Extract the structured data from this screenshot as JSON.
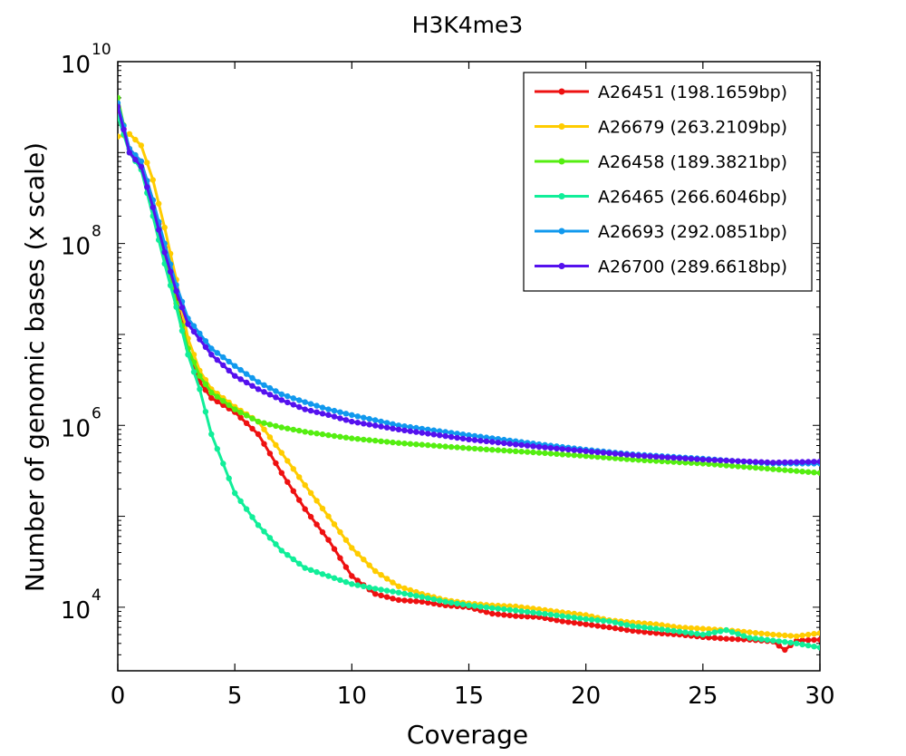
{
  "chart_data": {
    "type": "line",
    "title": "H3K4me3",
    "xlabel": "Coverage",
    "ylabel": "Number of genomic bases (x scale)",
    "xlim": [
      0,
      30
    ],
    "ylim": [
      2000,
      10000000000
    ],
    "yscale": "log",
    "grid": false,
    "legend_position": "top-right",
    "x_ticks": [
      {
        "value": 0,
        "label": "0"
      },
      {
        "value": 5,
        "label": "5"
      },
      {
        "value": 10,
        "label": "10"
      },
      {
        "value": 15,
        "label": "15"
      },
      {
        "value": 20,
        "label": "20"
      },
      {
        "value": 25,
        "label": "25"
      },
      {
        "value": 30,
        "label": "30"
      }
    ],
    "y_ticks": [
      {
        "value": 10000,
        "base": "10",
        "exp": "4"
      },
      {
        "value": 1000000,
        "base": "10",
        "exp": "6"
      },
      {
        "value": 100000000,
        "base": "10",
        "exp": "8"
      },
      {
        "value": 10000000000,
        "base": "10",
        "exp": "10"
      }
    ],
    "series": [
      {
        "name": "A26451 (198.1659bp)",
        "color": "#ee1111",
        "points": [
          [
            0,
            3000000000
          ],
          [
            0.5,
            1100000000
          ],
          [
            1,
            800000000
          ],
          [
            1.5,
            300000000
          ],
          [
            2,
            90000000
          ],
          [
            2.5,
            25000000
          ],
          [
            3,
            7000000
          ],
          [
            3.5,
            3000000
          ],
          [
            4,
            2000000
          ],
          [
            5,
            1400000
          ],
          [
            6,
            800000
          ],
          [
            7,
            300000
          ],
          [
            8,
            120000
          ],
          [
            9,
            55000
          ],
          [
            10,
            22000
          ],
          [
            11,
            14000
          ],
          [
            12,
            12000
          ],
          [
            13,
            11500
          ],
          [
            14,
            10500
          ],
          [
            15,
            10000
          ],
          [
            16,
            8500
          ],
          [
            17,
            8000
          ],
          [
            18,
            7800
          ],
          [
            19,
            7000
          ],
          [
            20,
            6500
          ],
          [
            21,
            6000
          ],
          [
            22,
            5500
          ],
          [
            23,
            5200
          ],
          [
            24,
            5000
          ],
          [
            25,
            4700
          ],
          [
            26,
            4500
          ],
          [
            27,
            4400
          ],
          [
            28,
            4200
          ],
          [
            28.5,
            3400
          ],
          [
            29,
            4300
          ],
          [
            30,
            4400
          ]
        ]
      },
      {
        "name": "A26679 (263.2109bp)",
        "color": "#ffcc00",
        "points": [
          [
            0,
            1500000000
          ],
          [
            0.5,
            1600000000
          ],
          [
            1,
            1200000000
          ],
          [
            1.5,
            500000000
          ],
          [
            2,
            150000000
          ],
          [
            2.5,
            40000000
          ],
          [
            3,
            9000000
          ],
          [
            3.5,
            4000000
          ],
          [
            4,
            2500000
          ],
          [
            5,
            1600000
          ],
          [
            6,
            1100000
          ],
          [
            7,
            500000
          ],
          [
            8,
            220000
          ],
          [
            9,
            100000
          ],
          [
            10,
            45000
          ],
          [
            11,
            25000
          ],
          [
            12,
            17000
          ],
          [
            13,
            14000
          ],
          [
            14,
            12000
          ],
          [
            15,
            11000
          ],
          [
            16,
            10500
          ],
          [
            17,
            10200
          ],
          [
            18,
            9500
          ],
          [
            19,
            8800
          ],
          [
            20,
            8200
          ],
          [
            21,
            7200
          ],
          [
            22,
            6800
          ],
          [
            23,
            6500
          ],
          [
            24,
            6000
          ],
          [
            25,
            5800
          ],
          [
            26,
            5600
          ],
          [
            27,
            5300
          ],
          [
            28,
            5000
          ],
          [
            29,
            4800
          ],
          [
            30,
            5200
          ]
        ]
      },
      {
        "name": "A26458 (189.3821bp)",
        "color": "#55ee11",
        "points": [
          [
            0,
            4000000000
          ],
          [
            0.5,
            1000000000
          ],
          [
            1,
            700000000
          ],
          [
            1.5,
            250000000
          ],
          [
            2,
            80000000
          ],
          [
            2.5,
            22000000
          ],
          [
            3,
            7000000
          ],
          [
            3.5,
            3500000
          ],
          [
            4,
            2300000
          ],
          [
            5,
            1500000
          ],
          [
            6,
            1100000
          ],
          [
            7,
            950000
          ],
          [
            8,
            850000
          ],
          [
            9,
            780000
          ],
          [
            10,
            720000
          ],
          [
            12,
            640000
          ],
          [
            15,
            560000
          ],
          [
            18,
            500000
          ],
          [
            20,
            460000
          ],
          [
            22,
            420000
          ],
          [
            25,
            380000
          ],
          [
            28,
            330000
          ],
          [
            30,
            300000
          ]
        ]
      },
      {
        "name": "A26465 (266.6046bp)",
        "color": "#11ee99",
        "points": [
          [
            0,
            2500000000
          ],
          [
            0.5,
            1000000000
          ],
          [
            1,
            650000000
          ],
          [
            1.5,
            200000000
          ],
          [
            2,
            60000000
          ],
          [
            2.5,
            20000000
          ],
          [
            3,
            6000000
          ],
          [
            3.5,
            2500000
          ],
          [
            4,
            800000
          ],
          [
            5,
            180000
          ],
          [
            6,
            80000
          ],
          [
            7,
            42000
          ],
          [
            8,
            27000
          ],
          [
            9,
            22000
          ],
          [
            10,
            18000
          ],
          [
            11,
            16000
          ],
          [
            12,
            14500
          ],
          [
            13,
            13000
          ],
          [
            14,
            11500
          ],
          [
            15,
            10500
          ],
          [
            16,
            9800
          ],
          [
            17,
            9200
          ],
          [
            18,
            8600
          ],
          [
            19,
            8000
          ],
          [
            20,
            7400
          ],
          [
            21,
            7000
          ],
          [
            22,
            6200
          ],
          [
            23,
            5800
          ],
          [
            24,
            5400
          ],
          [
            25,
            5000
          ],
          [
            26,
            5600
          ],
          [
            27,
            4600
          ],
          [
            28,
            4300
          ],
          [
            29,
            4000
          ],
          [
            30,
            3600
          ]
        ]
      },
      {
        "name": "A26693 (292.0851bp)",
        "color": "#1199ee",
        "points": [
          [
            0,
            3500000000
          ],
          [
            0.5,
            1100000000
          ],
          [
            1,
            800000000
          ],
          [
            1.5,
            300000000
          ],
          [
            2,
            100000000
          ],
          [
            2.5,
            35000000
          ],
          [
            3,
            15000000
          ],
          [
            4,
            7000000
          ],
          [
            5,
            4500000
          ],
          [
            6,
            3000000
          ],
          [
            7,
            2200000
          ],
          [
            8,
            1800000
          ],
          [
            9,
            1500000
          ],
          [
            10,
            1300000
          ],
          [
            12,
            1000000
          ],
          [
            15,
            780000
          ],
          [
            18,
            620000
          ],
          [
            20,
            540000
          ],
          [
            22,
            480000
          ],
          [
            25,
            430000
          ],
          [
            28,
            380000
          ],
          [
            30,
            380000
          ]
        ]
      },
      {
        "name": "A26700 (289.6618bp)",
        "color": "#5511ee",
        "points": [
          [
            0,
            3200000000
          ],
          [
            0.5,
            1000000000
          ],
          [
            1,
            700000000
          ],
          [
            1.5,
            250000000
          ],
          [
            2,
            80000000
          ],
          [
            2.5,
            30000000
          ],
          [
            3,
            13000000
          ],
          [
            4,
            6000000
          ],
          [
            5,
            3500000
          ],
          [
            6,
            2500000
          ],
          [
            7,
            1900000
          ],
          [
            8,
            1500000
          ],
          [
            9,
            1300000
          ],
          [
            10,
            1100000
          ],
          [
            12,
            900000
          ],
          [
            15,
            700000
          ],
          [
            18,
            580000
          ],
          [
            20,
            520000
          ],
          [
            22,
            470000
          ],
          [
            25,
            420000
          ],
          [
            28,
            390000
          ],
          [
            30,
            400000
          ]
        ]
      }
    ]
  }
}
